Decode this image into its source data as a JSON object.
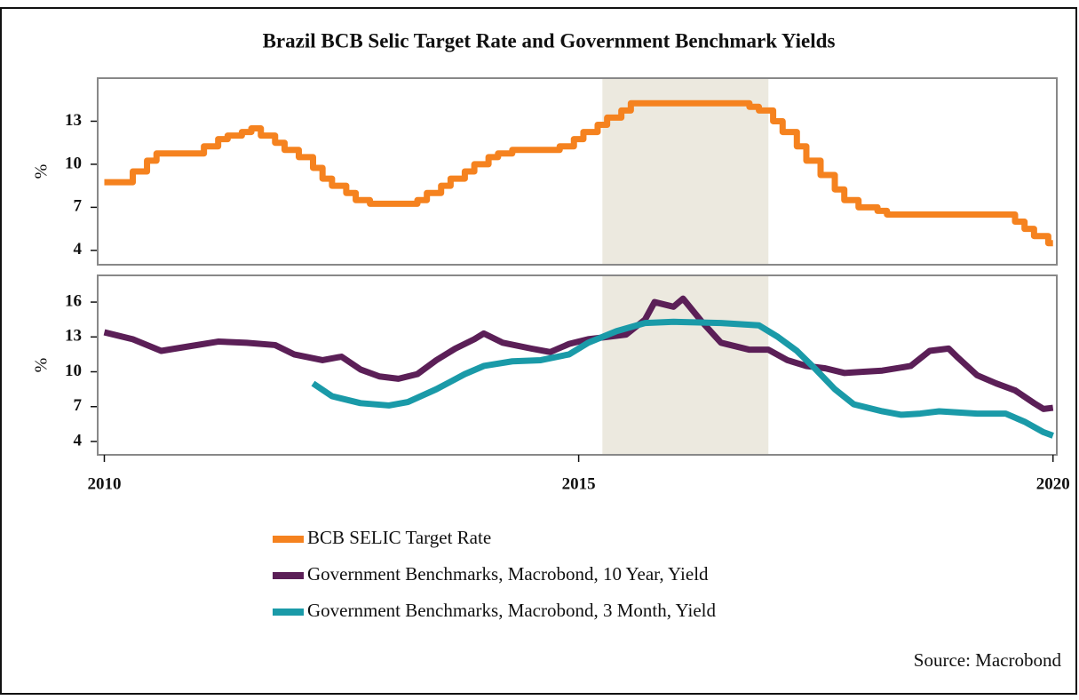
{
  "title": "Brazil BCB Selic Target Rate and Government Benchmark Yields",
  "source": "Source: Macrobond",
  "shading": [
    2015.25,
    2017.0
  ],
  "chart_data": [
    {
      "type": "line",
      "ylabel": "%",
      "xlim": [
        2009.93,
        2020.04
      ],
      "ylim": [
        3,
        16
      ],
      "yticks": [
        4,
        7,
        10,
        13
      ],
      "series": [
        {
          "name": "BCB SELIC Target Rate",
          "color": "#f5821f",
          "drawstyle": "steps-post",
          "x": [
            2010.0,
            2010.3,
            2010.45,
            2010.55,
            2011.05,
            2011.2,
            2011.3,
            2011.45,
            2011.55,
            2011.65,
            2011.8,
            2011.9,
            2012.05,
            2012.2,
            2012.3,
            2012.4,
            2012.55,
            2012.65,
            2012.8,
            2013.3,
            2013.4,
            2013.55,
            2013.65,
            2013.8,
            2013.9,
            2014.05,
            2014.15,
            2014.3,
            2014.8,
            2014.95,
            2015.05,
            2015.2,
            2015.3,
            2015.45,
            2015.55,
            2016.8,
            2016.9,
            2017.05,
            2017.15,
            2017.3,
            2017.4,
            2017.55,
            2017.7,
            2017.8,
            2017.95,
            2018.15,
            2018.25,
            2019.6,
            2019.7,
            2019.8,
            2019.95,
            2020.0
          ],
          "values": [
            8.75,
            9.5,
            10.25,
            10.75,
            11.25,
            11.75,
            12,
            12.25,
            12.5,
            12,
            11.5,
            11,
            10.5,
            9.75,
            9,
            8.5,
            8,
            7.5,
            7.25,
            7.5,
            8,
            8.5,
            9,
            9.5,
            10,
            10.5,
            10.75,
            11,
            11.25,
            11.75,
            12.25,
            12.75,
            13.25,
            13.75,
            14.25,
            14,
            13.75,
            13,
            12.25,
            11.25,
            10.25,
            9.25,
            8.25,
            7.5,
            7,
            6.75,
            6.5,
            6,
            5.5,
            5,
            4.5,
            4.5
          ]
        }
      ]
    },
    {
      "type": "line",
      "ylabel": "%",
      "xlim": [
        2009.93,
        2020.04
      ],
      "ylim": [
        2.85,
        18.3
      ],
      "yticks": [
        4,
        7,
        10,
        13,
        16
      ],
      "xticks": [
        2010,
        2015,
        2020
      ],
      "series": [
        {
          "name": "Government Benchmarks, Macrobond, 10 Year, Yield",
          "color": "#5b1f57",
          "x": [
            2010.0,
            2010.3,
            2010.6,
            2010.9,
            2011.2,
            2011.5,
            2011.8,
            2012.0,
            2012.3,
            2012.5,
            2012.7,
            2012.9,
            2013.1,
            2013.3,
            2013.5,
            2013.7,
            2013.9,
            2014.0,
            2014.2,
            2014.5,
            2014.7,
            2014.9,
            2015.1,
            2015.3,
            2015.5,
            2015.7,
            2015.8,
            2016.0,
            2016.1,
            2016.3,
            2016.5,
            2016.8,
            2017.0,
            2017.2,
            2017.4,
            2017.6,
            2017.8,
            2018.0,
            2018.2,
            2018.5,
            2018.7,
            2018.9,
            2019.0,
            2019.2,
            2019.4,
            2019.6,
            2019.8,
            2019.9,
            2020.0
          ],
          "values": [
            13.4,
            12.8,
            11.8,
            12.2,
            12.6,
            12.5,
            12.3,
            11.5,
            11.0,
            11.3,
            10.2,
            9.6,
            9.4,
            9.8,
            11.0,
            12.0,
            12.8,
            13.3,
            12.5,
            12.0,
            11.7,
            12.4,
            12.8,
            13.0,
            13.2,
            14.5,
            16.0,
            15.6,
            16.3,
            14.3,
            12.5,
            11.9,
            11.9,
            11.0,
            10.5,
            10.3,
            9.9,
            10.0,
            10.1,
            10.5,
            11.8,
            12.0,
            11.2,
            9.7,
            9.0,
            8.4,
            7.3,
            6.8,
            6.9
          ]
        },
        {
          "name": "Government Benchmarks, Macrobond, 3 Month, Yield",
          "color": "#1a9aa8",
          "x": [
            2012.2,
            2012.4,
            2012.7,
            2013.0,
            2013.2,
            2013.5,
            2013.8,
            2014.0,
            2014.3,
            2014.6,
            2014.9,
            2015.1,
            2015.4,
            2015.7,
            2016.0,
            2016.5,
            2016.9,
            2017.1,
            2017.3,
            2017.5,
            2017.7,
            2017.9,
            2018.2,
            2018.4,
            2018.6,
            2018.8,
            2019.2,
            2019.5,
            2019.7,
            2019.9,
            2020.0
          ],
          "values": [
            9.0,
            7.9,
            7.3,
            7.1,
            7.4,
            8.5,
            9.8,
            10.5,
            10.9,
            11.0,
            11.5,
            12.5,
            13.5,
            14.2,
            14.3,
            14.2,
            14.0,
            13.0,
            11.8,
            10.2,
            8.5,
            7.2,
            6.6,
            6.3,
            6.4,
            6.6,
            6.4,
            6.4,
            5.7,
            4.8,
            4.5
          ]
        }
      ]
    }
  ]
}
